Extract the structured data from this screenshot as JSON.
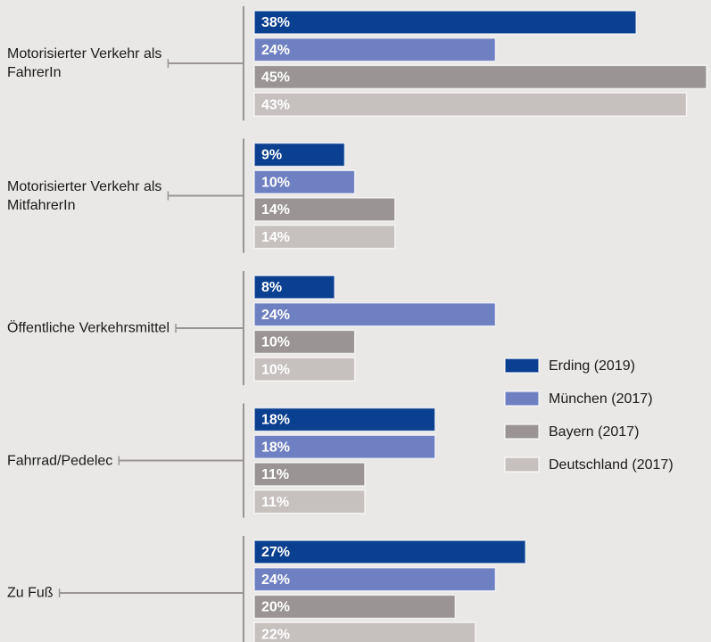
{
  "chart_data": {
    "type": "bar",
    "orientation": "horizontal",
    "categories": [
      "Motorisierter Verkehr als\nFahrerIn",
      "Motorisierter Verkehr als\nMitfahrerIn",
      "Öffentliche Verkehrsmittel",
      "Fahrrad/Pedelec",
      "Zu Fuß"
    ],
    "xlim": [
      0,
      45
    ],
    "series": [
      {
        "name": "Erding (2019)",
        "color": "#0b3f8f",
        "values": [
          38,
          9,
          8,
          18,
          27
        ],
        "value_labels": [
          "38%",
          "9%",
          "8%",
          "18%",
          "27%"
        ]
      },
      {
        "name": "München (2017)",
        "color": "#6f80c2",
        "values": [
          24,
          10,
          24,
          18,
          24
        ],
        "value_labels": [
          "24%",
          "10%",
          "24%",
          "18%",
          "24%"
        ]
      },
      {
        "name": "Bayern (2017)",
        "color": "#9a9594",
        "values": [
          45,
          14,
          10,
          11,
          20
        ],
        "value_labels": [
          "45%",
          "14%",
          "10%",
          "11%",
          "20%"
        ]
      },
      {
        "name": "Deutschland (2017)",
        "color": "#c6c0bf",
        "values": [
          43,
          14,
          10,
          11,
          22
        ],
        "value_labels": [
          "43%",
          "14%",
          "10%",
          "11%",
          "22%"
        ]
      }
    ],
    "legend": "right"
  }
}
